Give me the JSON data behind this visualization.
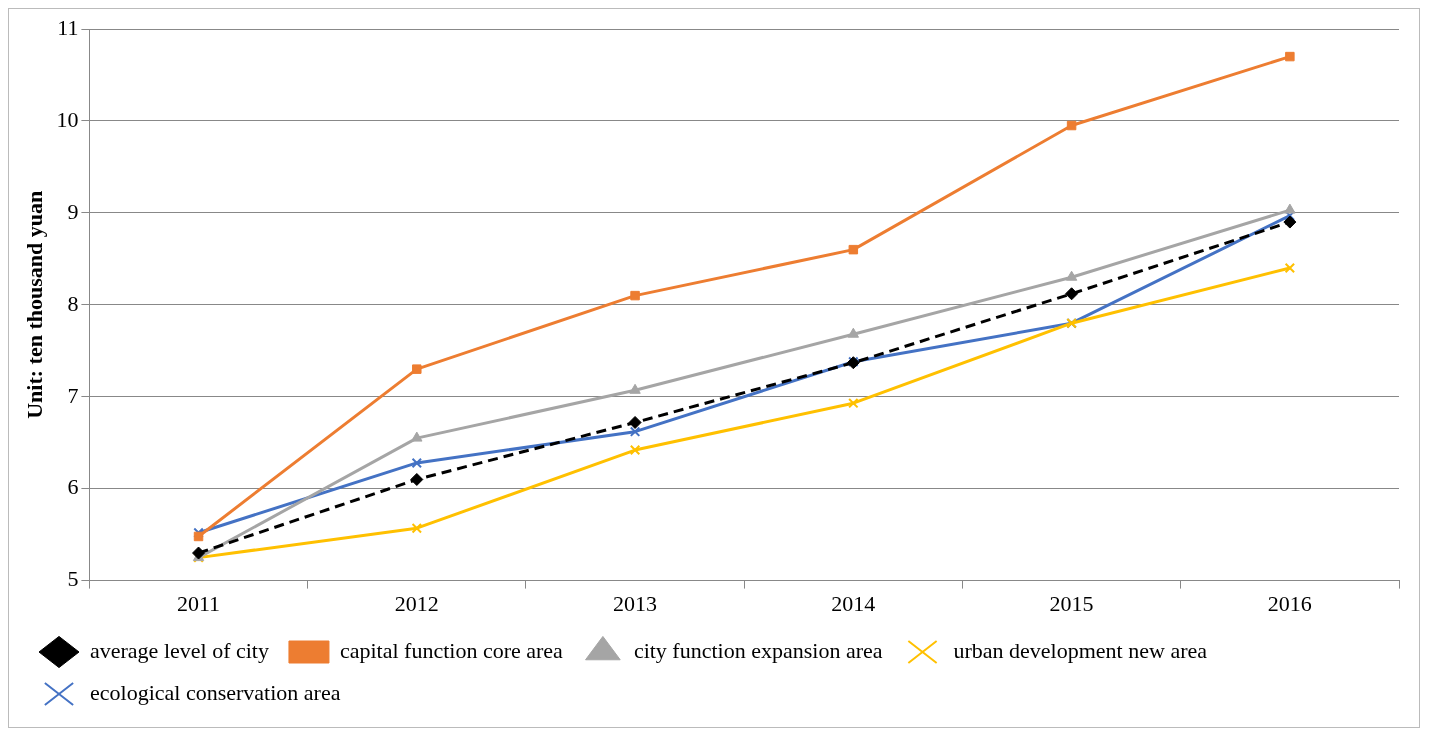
{
  "chart_data": {
    "type": "line",
    "ylabel": "Unit: ten thousand yuan",
    "categories": [
      "2011",
      "2012",
      "2013",
      "2014",
      "2015",
      "2016"
    ],
    "ylim": [
      5,
      11
    ],
    "yticks": [
      5,
      6,
      7,
      8,
      9,
      10,
      11
    ],
    "grid": "y",
    "legend": "bottom",
    "series": [
      {
        "name": "average level of city",
        "color": "#000000",
        "marker": "diamond",
        "line_style": "dashed",
        "values": [
          5.3,
          6.1,
          6.72,
          7.37,
          8.12,
          8.9
        ]
      },
      {
        "name": "capital function core area",
        "color": "#ed7d31",
        "marker": "square",
        "line_style": "solid",
        "values": [
          5.48,
          7.3,
          8.1,
          8.6,
          9.95,
          10.7
        ]
      },
      {
        "name": "city function expansion area",
        "color": "#a5a5a5",
        "marker": "triangle",
        "line_style": "solid",
        "values": [
          5.25,
          6.55,
          7.07,
          7.68,
          8.3,
          9.03
        ]
      },
      {
        "name": "urban development new area",
        "color": "#ffc000",
        "marker": "cross",
        "line_style": "solid",
        "values": [
          5.25,
          5.57,
          6.42,
          6.93,
          7.8,
          8.4
        ]
      },
      {
        "name": "ecological conservation area",
        "color": "#4472c4",
        "marker": "cross",
        "line_style": "solid",
        "values": [
          5.52,
          6.28,
          6.62,
          7.38,
          7.8,
          8.97
        ]
      }
    ]
  }
}
